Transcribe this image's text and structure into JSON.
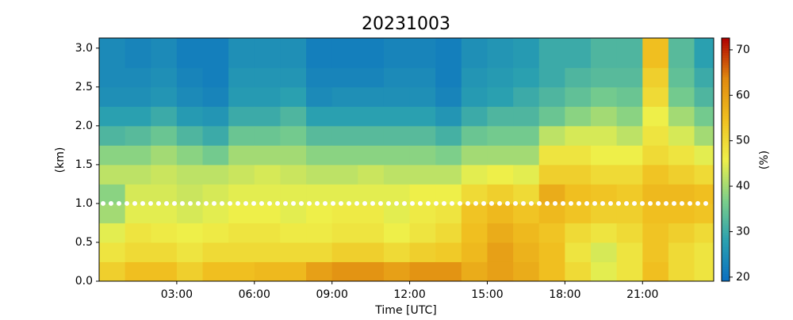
{
  "chart_data": {
    "type": "heatmap",
    "title": "20231003",
    "xlabel": "Time [UTC]",
    "ylabel": "(km)",
    "colorbar_label": "(%)",
    "x_edges": [
      0,
      1,
      2,
      3,
      4,
      5,
      6,
      7,
      8,
      9,
      10,
      11,
      12,
      13,
      14,
      15,
      16,
      17,
      18,
      19,
      20,
      21,
      22,
      23,
      23.75
    ],
    "y_edges": [
      0,
      0.25,
      0.5,
      0.75,
      1.0,
      1.25,
      1.5,
      1.75,
      2.0,
      2.25,
      2.5,
      2.75,
      3.13
    ],
    "z": [
      [
        52,
        48,
        45,
        40,
        38,
        42,
        38,
        32,
        28,
        25,
        24,
        24
      ],
      [
        55,
        50,
        48,
        45,
        44,
        42,
        38,
        33,
        28,
        25,
        24,
        23
      ],
      [
        55,
        50,
        47,
        45,
        44,
        43,
        40,
        35,
        30,
        26,
        25,
        24
      ],
      [
        52,
        48,
        46,
        44,
        43,
        42,
        38,
        32,
        27,
        24,
        23,
        22
      ],
      [
        55,
        50,
        47,
        45,
        44,
        42,
        36,
        30,
        26,
        23,
        22,
        22
      ],
      [
        55,
        50,
        48,
        46,
        45,
        43,
        40,
        35,
        30,
        27,
        26,
        25
      ],
      [
        56,
        50,
        48,
        46,
        45,
        44,
        40,
        35,
        30,
        27,
        26,
        25
      ],
      [
        56,
        50,
        47,
        45,
        45,
        43,
        40,
        36,
        32,
        28,
        26,
        25
      ],
      [
        60,
        50,
        47,
        46,
        45,
        42,
        38,
        33,
        28,
        24,
        23,
        22
      ],
      [
        62,
        52,
        48,
        47,
        45,
        42,
        38,
        33,
        28,
        25,
        23,
        22
      ],
      [
        62,
        52,
        48,
        47,
        45,
        43,
        38,
        33,
        28,
        25,
        23,
        22
      ],
      [
        60,
        50,
        46,
        45,
        45,
        42,
        38,
        33,
        28,
        25,
        24,
        23
      ],
      [
        62,
        52,
        48,
        47,
        46,
        42,
        38,
        33,
        28,
        25,
        24,
        23
      ],
      [
        62,
        53,
        50,
        48,
        46,
        42,
        37,
        31,
        26,
        23,
        22,
        22
      ],
      [
        58,
        56,
        55,
        54,
        50,
        45,
        40,
        35,
        30,
        27,
        26,
        25
      ],
      [
        60,
        60,
        58,
        56,
        52,
        46,
        40,
        36,
        32,
        28,
        27,
        26
      ],
      [
        58,
        57,
        56,
        54,
        50,
        45,
        40,
        36,
        32,
        30,
        28,
        27
      ],
      [
        55,
        55,
        54,
        56,
        58,
        52,
        48,
        42,
        35,
        32,
        30,
        30
      ],
      [
        50,
        48,
        50,
        54,
        55,
        52,
        48,
        44,
        38,
        34,
        32,
        30
      ],
      [
        45,
        44,
        48,
        52,
        54,
        50,
        46,
        44,
        40,
        36,
        33,
        32
      ],
      [
        48,
        48,
        50,
        52,
        53,
        50,
        46,
        42,
        38,
        35,
        33,
        32
      ],
      [
        55,
        54,
        54,
        55,
        56,
        54,
        50,
        48,
        46,
        50,
        52,
        55
      ],
      [
        50,
        50,
        52,
        55,
        56,
        52,
        48,
        44,
        40,
        36,
        34,
        33
      ],
      [
        48,
        48,
        50,
        54,
        55,
        50,
        45,
        40,
        36,
        32,
        30,
        28
      ]
    ],
    "hline": 1.0,
    "hline_color": "#ffffff",
    "xlim": [
      0,
      23.75
    ],
    "xticks": [
      {
        "value": 3,
        "label": "03:00"
      },
      {
        "value": 6,
        "label": "06:00"
      },
      {
        "value": 9,
        "label": "09:00"
      },
      {
        "value": 12,
        "label": "12:00"
      },
      {
        "value": 15,
        "label": "15:00"
      },
      {
        "value": 18,
        "label": "18:00"
      },
      {
        "value": 21,
        "label": "21:00"
      }
    ],
    "ylim": [
      0,
      3.13
    ],
    "yticks": [
      {
        "value": 0,
        "label": "0.0"
      },
      0.5,
      {
        "value": 1,
        "label": "1.0"
      },
      1.5,
      {
        "value": 2,
        "label": "2.0"
      },
      2.5,
      {
        "value": 3,
        "label": "3.0"
      }
    ],
    "clim": [
      19.1,
      72.6
    ],
    "cticks": [
      20,
      30,
      40,
      50,
      60,
      70
    ],
    "colorscale": [
      "#0a6fc2",
      "#2aa0b0",
      "#7ccf8a",
      "#eef04a",
      "#f0c020",
      "#e08a10",
      "#b00000"
    ]
  }
}
